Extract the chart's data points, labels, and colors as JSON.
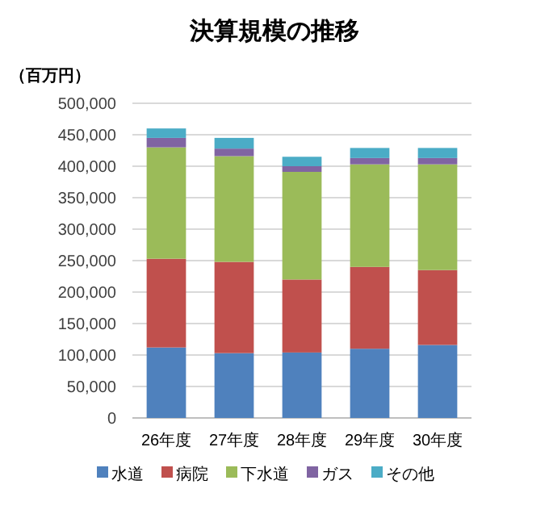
{
  "chart_data": {
    "type": "bar",
    "title": "決算規模の推移",
    "ylabel": "（百万円）",
    "categories": [
      "26年度",
      "27年度",
      "28年度",
      "29年度",
      "30年度"
    ],
    "stacked": true,
    "series": [
      {
        "name": "水道",
        "color": "#4f81bd",
        "values": [
          112000,
          103000,
          104000,
          110000,
          116000
        ]
      },
      {
        "name": "病院",
        "color": "#c0504d",
        "values": [
          141000,
          145000,
          116000,
          130000,
          119000
        ]
      },
      {
        "name": "下水道",
        "color": "#9bbb59",
        "values": [
          177000,
          168000,
          171000,
          163000,
          168000
        ]
      },
      {
        "name": "ガス",
        "color": "#8064a2",
        "values": [
          15000,
          12000,
          9000,
          10000,
          10000
        ]
      },
      {
        "name": "その他",
        "color": "#4bacc6",
        "values": [
          15000,
          17000,
          15000,
          16000,
          16000
        ]
      }
    ],
    "ylim": [
      0,
      500000
    ],
    "yticks": [
      {
        "value": 0,
        "label": "0"
      },
      {
        "value": 50000,
        "label": "50,000"
      },
      {
        "value": 100000,
        "label": "100,000"
      },
      {
        "value": 150000,
        "label": "150,000"
      },
      {
        "value": 200000,
        "label": "200,000"
      },
      {
        "value": 250000,
        "label": "250,000"
      },
      {
        "value": 300000,
        "label": "300,000"
      },
      {
        "value": 350000,
        "label": "350,000"
      },
      {
        "value": 400000,
        "label": "400,000"
      },
      {
        "value": 450000,
        "label": "450,000"
      },
      {
        "value": 500000,
        "label": "500,000"
      }
    ],
    "grid": "y",
    "legend": "bottom"
  }
}
